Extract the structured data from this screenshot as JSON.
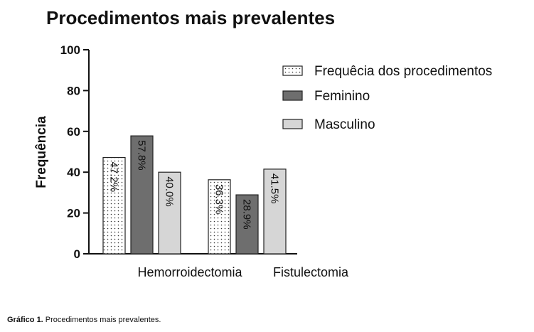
{
  "chart_data": {
    "type": "bar",
    "title": "Procedimentos mais prevalentes",
    "ylabel": "Frequência",
    "xlabel": "",
    "ylim": [
      0,
      100
    ],
    "yticks": [
      0,
      20,
      40,
      60,
      80,
      100
    ],
    "categories": [
      "Hemorroidectomia",
      "Fistulectomia"
    ],
    "series": [
      {
        "name": "Frequêcia dos procedimentos",
        "pattern": "dots",
        "color": "#ffffff",
        "values": [
          47.2,
          36.3
        ],
        "labels": [
          "47.2%",
          "36.3%"
        ]
      },
      {
        "name": "Feminino",
        "pattern": "solid",
        "color": "#6e6e6e",
        "values": [
          57.8,
          28.9
        ],
        "labels": [
          "57.8%",
          "28.9%"
        ]
      },
      {
        "name": "Masculino",
        "pattern": "solid",
        "color": "#d6d6d6",
        "values": [
          40.0,
          41.5
        ],
        "labels": [
          "40.0%",
          "41.5%"
        ]
      }
    ],
    "legend_position": "top-right",
    "grid": false
  },
  "caption": {
    "label": "Gráfico 1.",
    "text": " Procedimentos mais prevalentes."
  }
}
